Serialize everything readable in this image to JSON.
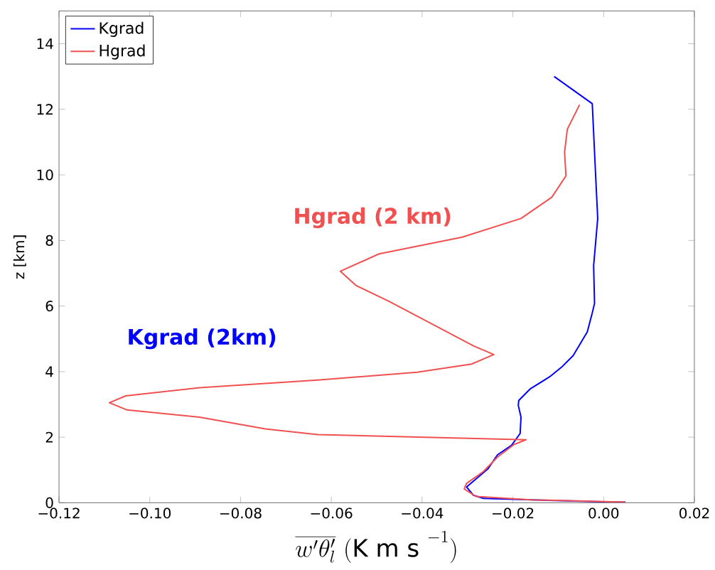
{
  "chart_data": {
    "type": "line",
    "xlabel": "\\overline{w'\\theta'_{l}}\\ (\\mathrm{K\\ m\\ s}^{\\ -1})",
    "ylabel": "z [km]",
    "xlim": [
      -0.12,
      0.02
    ],
    "ylim": [
      0,
      15
    ],
    "xticks": [
      {
        "value": -0.12,
        "label": "−0.12"
      },
      {
        "value": -0.1,
        "label": "−0.10"
      },
      {
        "value": -0.08,
        "label": "−0.08"
      },
      {
        "value": -0.06,
        "label": "−0.06"
      },
      {
        "value": -0.04,
        "label": "−0.04"
      },
      {
        "value": -0.02,
        "label": "−0.02"
      },
      {
        "value": 0,
        "label": "0.00"
      },
      {
        "value": 0.02,
        "label": "0.02"
      }
    ],
    "yticks": [
      0,
      2,
      4,
      6,
      8,
      10,
      12,
      14
    ],
    "grid": false,
    "legend": "top left",
    "marker": "none",
    "line_style": "solid",
    "annotations": [
      "Kgrad (2km)",
      "Hgrad (2 km)"
    ],
    "series": [
      {
        "name": "Kgrad",
        "color": "#0000ff",
        "x": [
          -0.0109,
          -0.0025,
          -0.0018,
          -0.0013,
          -0.0022,
          -0.002,
          -0.0025,
          -0.0036,
          -0.0067,
          -0.0093,
          -0.0119,
          -0.0161,
          -0.0187,
          -0.0188,
          -0.0182,
          -0.0184,
          -0.0203,
          -0.0234,
          -0.0255,
          -0.028,
          -0.0302,
          -0.0287,
          -0.0265,
          -0.0004,
          0.0048
        ],
        "values": [
          13.0,
          12.17,
          10.1,
          8.67,
          7.23,
          6.08,
          5.79,
          5.21,
          4.49,
          4.13,
          3.84,
          3.48,
          3.12,
          2.97,
          2.61,
          2.11,
          1.75,
          1.46,
          1.03,
          0.74,
          0.48,
          0.23,
          0.13,
          0.03,
          0.02
        ]
      },
      {
        "name": "Hgrad",
        "color": "#f05050",
        "x": [
          -0.0053,
          -0.008,
          -0.0086,
          -0.0083,
          -0.0114,
          -0.0182,
          -0.0312,
          -0.0495,
          -0.058,
          -0.0545,
          -0.0474,
          -0.0286,
          -0.0242,
          -0.0291,
          -0.0411,
          -0.063,
          -0.089,
          -0.1053,
          -0.1089,
          -0.105,
          -0.089,
          -0.0745,
          -0.063,
          -0.0171,
          -0.0197,
          -0.0234,
          -0.0265,
          -0.0302,
          -0.0307,
          -0.0281,
          -0.0161,
          0.0048
        ],
        "values": [
          12.14,
          11.39,
          10.69,
          9.97,
          9.32,
          8.67,
          8.1,
          7.59,
          7.06,
          6.62,
          6.15,
          4.78,
          4.52,
          4.23,
          3.98,
          3.74,
          3.51,
          3.26,
          3.05,
          2.83,
          2.61,
          2.25,
          2.08,
          1.92,
          1.78,
          1.39,
          0.95,
          0.59,
          0.42,
          0.19,
          0.09,
          0.02
        ]
      }
    ]
  }
}
